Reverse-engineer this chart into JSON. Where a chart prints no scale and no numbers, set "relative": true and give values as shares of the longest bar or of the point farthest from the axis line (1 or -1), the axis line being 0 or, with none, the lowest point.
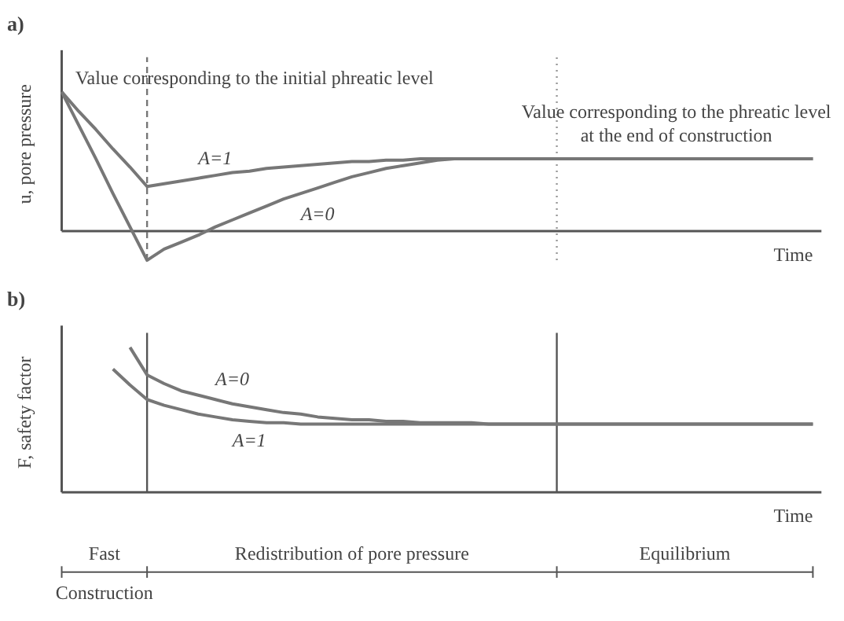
{
  "chart_data": [
    {
      "type": "line",
      "title": "a)",
      "ylabel": "u, pore pressure",
      "xlabel": "Time",
      "relative": true,
      "grid": false,
      "marker": "none",
      "categories": [
        null,
        null,
        null,
        null,
        null,
        null,
        null,
        null,
        null,
        null,
        null,
        null,
        null,
        null,
        null,
        null,
        null,
        null,
        null,
        null,
        null,
        null,
        null,
        null,
        null,
        null,
        null,
        null,
        null,
        null,
        null,
        null,
        null,
        null,
        null,
        null,
        null,
        null,
        null,
        null,
        null,
        null,
        null,
        null,
        null
      ],
      "series": [
        {
          "name": "A=1",
          "color": "#777777",
          "values": [
            1,
            0.86,
            0.73,
            0.59,
            0.46,
            0.32,
            0.34,
            0.36,
            0.38,
            0.4,
            0.42,
            0.43,
            0.45,
            0.46,
            0.47,
            0.48,
            0.49,
            0.5,
            0.5,
            0.51,
            0.51,
            0.52,
            0.52,
            0.52,
            0.52,
            0.52,
            0.52,
            0.52,
            0.52,
            0.52,
            0.52,
            0.52,
            0.52,
            0.52,
            0.52,
            0.52,
            0.52,
            0.52,
            0.52,
            0.52,
            0.52,
            0.52,
            0.52,
            0.52,
            0.52
          ]
        },
        {
          "name": "A=0",
          "color": "#777777",
          "values": [
            1,
            0.76,
            0.52,
            0.27,
            0.03,
            -0.21,
            -0.13,
            -0.08,
            -0.03,
            0.03,
            0.08,
            0.13,
            0.18,
            0.23,
            0.27,
            0.31,
            0.35,
            0.39,
            0.42,
            0.45,
            0.47,
            0.49,
            0.51,
            0.52,
            0.52,
            0.52,
            0.52,
            0.52,
            0.52,
            0.52,
            0.52,
            0.52,
            0.52,
            0.52,
            0.52,
            0.52,
            0.52,
            0.52,
            0.52,
            0.52,
            0.52,
            0.52,
            0.52,
            0.52,
            0.52
          ]
        }
      ],
      "annotations": [
        "Value corresponding to the initial phreatic level",
        "Value corresponding to the phreatic level at the end of construction"
      ]
    },
    {
      "type": "line",
      "title": "b)",
      "ylabel": "F, safety factor",
      "xlabel": "Time",
      "relative": true,
      "grid": false,
      "marker": "none",
      "categories": [
        null,
        null,
        null,
        null,
        null,
        null,
        null,
        null,
        null,
        null,
        null,
        null,
        null,
        null,
        null,
        null,
        null,
        null,
        null,
        null,
        null,
        null,
        null,
        null,
        null,
        null,
        null,
        null,
        null,
        null,
        null,
        null,
        null,
        null,
        null,
        null,
        null,
        null,
        null,
        null,
        null,
        null,
        null,
        null,
        null
      ],
      "series": [
        {
          "name": "A=0",
          "color": "#777777",
          "values": [
            null,
            null,
            null,
            null,
            1,
            0.81,
            0.75,
            0.7,
            0.67,
            0.64,
            0.61,
            0.59,
            0.57,
            0.55,
            0.54,
            0.52,
            0.51,
            0.5,
            0.5,
            0.49,
            0.49,
            0.48,
            0.48,
            0.48,
            0.48,
            0.47,
            0.47,
            0.47,
            0.47,
            0.47,
            0.47,
            0.47,
            0.47,
            0.47,
            0.47,
            0.47,
            0.47,
            0.47,
            0.47,
            0.47,
            0.47,
            0.47,
            0.47,
            0.47,
            0.47
          ]
        },
        {
          "name": "A=1",
          "color": "#777777",
          "values": [
            null,
            null,
            null,
            0.85,
            0.74,
            0.64,
            0.6,
            0.57,
            0.54,
            0.52,
            0.5,
            0.49,
            0.48,
            0.48,
            0.47,
            0.47,
            0.47,
            0.47,
            0.47,
            0.47,
            0.47,
            0.47,
            0.47,
            0.47,
            0.47,
            0.47,
            0.47,
            0.47,
            0.47,
            0.47,
            0.47,
            0.47,
            0.47,
            0.47,
            0.47,
            0.47,
            0.47,
            0.47,
            0.47,
            0.47,
            0.47,
            0.47,
            0.47,
            0.47,
            0.47
          ]
        }
      ],
      "annotations": [
        "Fast",
        "Redistribution of pore pressure",
        "Equilibrium",
        "Construction"
      ]
    }
  ]
}
